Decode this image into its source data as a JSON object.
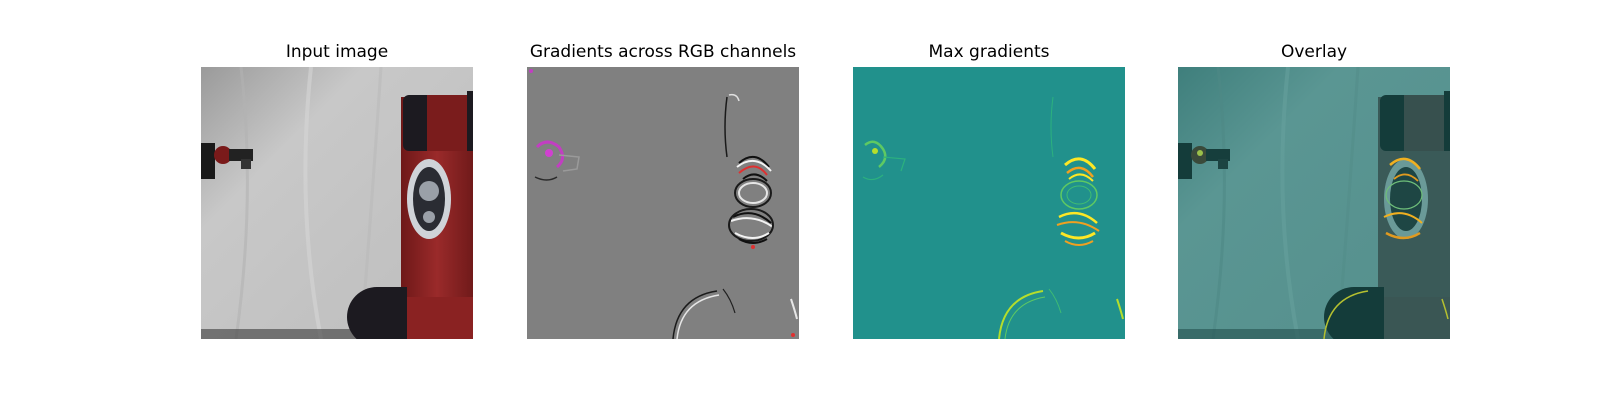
{
  "figure": {
    "panels": [
      {
        "title": "Input image",
        "image": "robot-arm-photo"
      },
      {
        "title": "Gradients across RGB channels",
        "image": "rgb-gradient-map"
      },
      {
        "title": "Max gradients",
        "image": "max-gradient-heatmap"
      },
      {
        "title": "Overlay",
        "image": "gradient-overlay-on-photo"
      }
    ]
  },
  "colors": {
    "background_gray": "#c9c9c9",
    "robot_red": "#8e2424",
    "robot_dark": "#1c1a20",
    "gradient_gray": "#808080",
    "heatmap_teal": "#21918c",
    "heatmap_yellow": "#fde725",
    "overlay_teal": "#4f8f8c"
  }
}
